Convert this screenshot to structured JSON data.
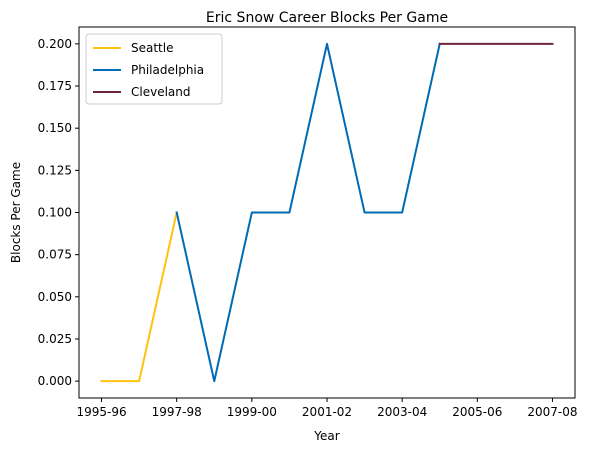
{
  "chart_data": {
    "type": "line",
    "title": "Eric Snow Career Blocks Per Game",
    "xlabel": "Year",
    "ylabel": "Blocks Per Game",
    "x": [
      "1995-96",
      "1996-97",
      "1997-98",
      "1998-99",
      "1999-00",
      "2000-01",
      "2001-02",
      "2002-03",
      "2003-04",
      "2004-05",
      "2005-06",
      "2006-07",
      "2007-08"
    ],
    "x_tick_labels": [
      "1995-96",
      "1997-98",
      "1999-00",
      "2001-02",
      "2003-04",
      "2005-06",
      "2007-08"
    ],
    "y_tick_labels": [
      "0.000",
      "0.025",
      "0.050",
      "0.075",
      "0.100",
      "0.125",
      "0.150",
      "0.175",
      "0.200"
    ],
    "ylim": [
      -0.01,
      0.21
    ],
    "grid": false,
    "legend_position": "top-left",
    "series": [
      {
        "name": "Seattle",
        "color": "#FFC20E",
        "x": [
          "1995-96",
          "1996-97",
          "1997-98"
        ],
        "values": [
          0.0,
          0.0,
          0.1
        ]
      },
      {
        "name": "Philadelphia",
        "color": "#006BB6",
        "x": [
          "1997-98",
          "1998-99",
          "1999-00",
          "2000-01",
          "2001-02",
          "2002-03",
          "2003-04",
          "2004-05"
        ],
        "values": [
          0.1,
          0.0,
          0.1,
          0.1,
          0.2,
          0.1,
          0.1,
          0.2
        ]
      },
      {
        "name": "Cleveland",
        "color": "#6F263D",
        "x": [
          "2004-05",
          "2005-06",
          "2006-07",
          "2007-08"
        ],
        "values": [
          0.2,
          0.2,
          0.2,
          0.2
        ]
      }
    ]
  }
}
